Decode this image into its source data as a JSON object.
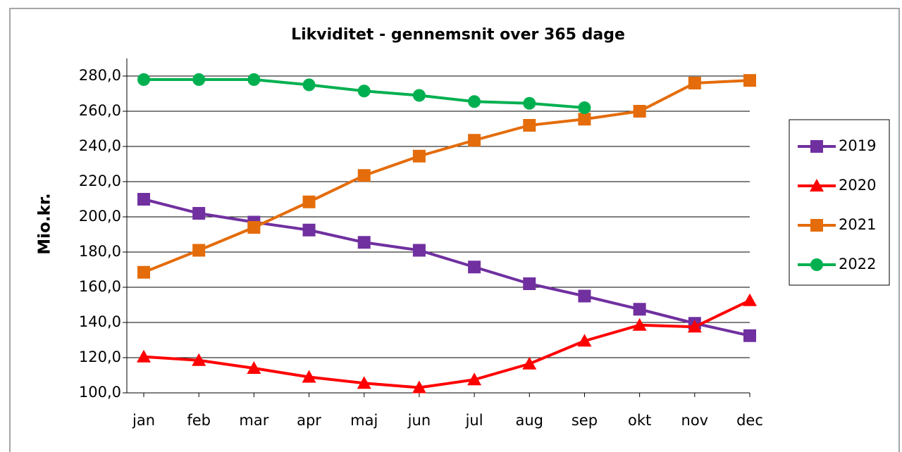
{
  "chart_data": {
    "type": "line",
    "title": "Likviditet - gennemsnit over 365 dage",
    "ylabel": "Mio.kr.",
    "categories": [
      "jan",
      "feb",
      "mar",
      "apr",
      "maj",
      "jun",
      "jul",
      "aug",
      "sep",
      "okt",
      "nov",
      "dec"
    ],
    "series": [
      {
        "name": "2019",
        "color": "#7030a0",
        "marker": "square",
        "values": [
          210,
          202,
          197,
          192.5,
          185.5,
          181,
          171.5,
          162,
          155,
          147.5,
          139.5,
          132.5
        ]
      },
      {
        "name": "2020",
        "color": "#ff0000",
        "marker": "triangle",
        "values": [
          120.5,
          118.5,
          114,
          109,
          105.5,
          103,
          107.5,
          116.5,
          129.5,
          138.5,
          137.5,
          152.5
        ]
      },
      {
        "name": "2021",
        "color": "#e46c0a",
        "marker": "square",
        "values": [
          168.5,
          181,
          194,
          208.5,
          223.5,
          234.5,
          243.5,
          252,
          255.5,
          260,
          276,
          277.5
        ]
      },
      {
        "name": "2022",
        "color": "#00b050",
        "marker": "circle",
        "values": [
          278,
          278,
          278,
          275,
          271.5,
          269,
          265.5,
          264.5,
          262,
          null,
          null,
          null
        ]
      }
    ],
    "ylim": [
      100,
      280
    ],
    "yticks": [
      {
        "value": 100,
        "label": "100,0"
      },
      {
        "value": 120,
        "label": "120,0"
      },
      {
        "value": 140,
        "label": "140,0"
      },
      {
        "value": 160,
        "label": "160,0"
      },
      {
        "value": 180,
        "label": "180,0"
      },
      {
        "value": 200,
        "label": "200,0"
      },
      {
        "value": 220,
        "label": "220,0"
      },
      {
        "value": 240,
        "label": "240,0"
      },
      {
        "value": 260,
        "label": "260,0"
      },
      {
        "value": 280,
        "label": "280,0"
      }
    ],
    "grid": true,
    "legend": "right"
  }
}
